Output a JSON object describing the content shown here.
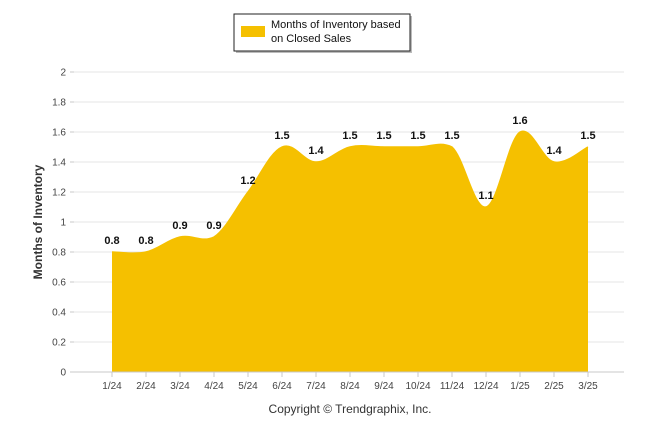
{
  "chart_data": {
    "type": "area",
    "categories": [
      "1/24",
      "2/24",
      "3/24",
      "4/24",
      "5/24",
      "6/24",
      "7/24",
      "8/24",
      "9/24",
      "10/24",
      "11/24",
      "12/24",
      "1/25",
      "2/25",
      "3/25"
    ],
    "series": [
      {
        "name": "Months of Inventory based on Closed Sales",
        "values": [
          0.8,
          0.8,
          0.9,
          0.9,
          1.2,
          1.5,
          1.4,
          1.5,
          1.5,
          1.5,
          1.5,
          1.1,
          1.6,
          1.4,
          1.5
        ],
        "data_labels": [
          "0.8",
          "0.8",
          "0.9",
          "0.9",
          "1.2",
          "1.5",
          "1.4",
          "1.5",
          "1.5",
          "1.5",
          "1.5",
          "1.1",
          "1.6",
          "1.4",
          "1.5"
        ],
        "color": "#F5C000"
      }
    ],
    "ylabel": "Months of Inventory",
    "xlabel": "",
    "ylim": [
      0,
      2
    ],
    "yticks": [
      0,
      0.2,
      0.4,
      0.6,
      0.8,
      1,
      1.2,
      1.4,
      1.6,
      1.8,
      2
    ],
    "ytick_labels": [
      "0",
      "0.2",
      "0.4",
      "0.6",
      "0.8",
      "1",
      "1.2",
      "1.4",
      "1.6",
      "1.8",
      "2"
    ],
    "grid": true,
    "grid_color": "#e6e6e6",
    "legend_position": "top-center",
    "legend_lines": [
      "Months of Inventory based",
      "on Closed Sales"
    ]
  },
  "footer": {
    "copyright": "Copyright © Trendgraphix, Inc."
  }
}
